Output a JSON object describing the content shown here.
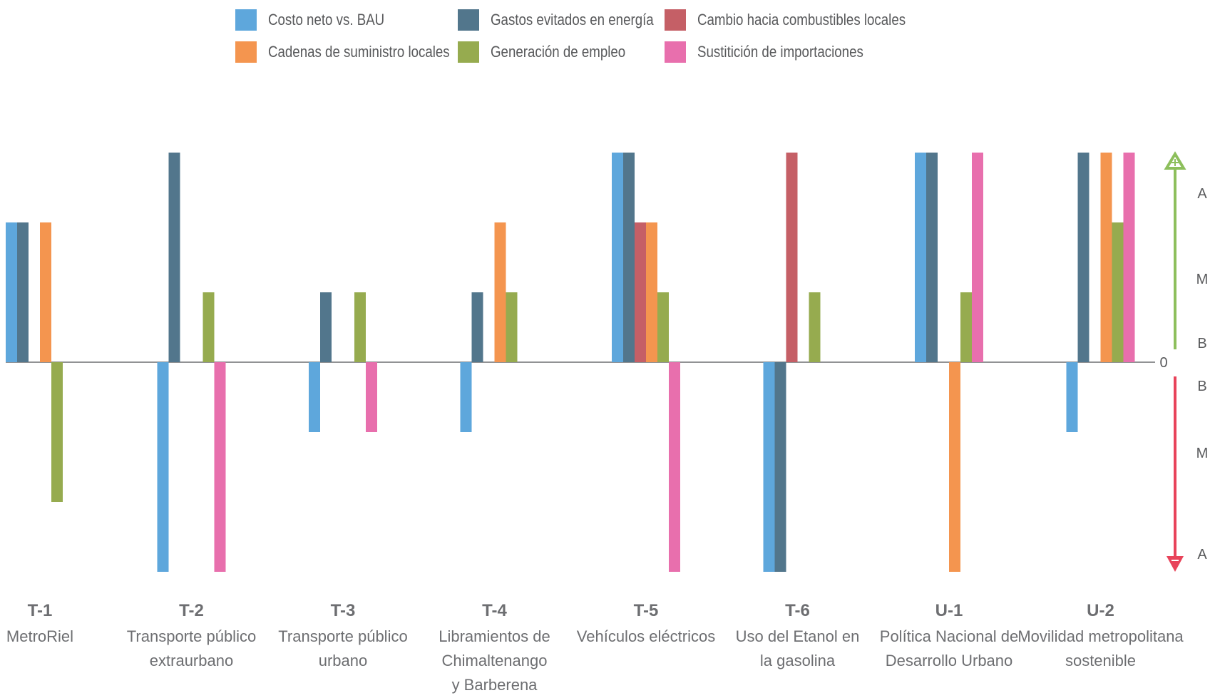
{
  "chart_data": {
    "type": "bar",
    "title": "",
    "legend_position": "top",
    "grid": false,
    "level_scale": {
      "positive_labels": [
        "B",
        "M",
        "A"
      ],
      "negative_labels": [
        "B",
        "M",
        "A"
      ],
      "zero_label": "0",
      "ylim": [
        -3,
        3
      ],
      "positive_color": "#8dbf5c",
      "negative_color": "#e8435a"
    },
    "categories": [
      {
        "code": "T-1",
        "name": [
          "MetroRiel"
        ]
      },
      {
        "code": "T-2",
        "name": [
          "Transporte público",
          "extraurbano"
        ]
      },
      {
        "code": "T-3",
        "name": [
          "Transporte público",
          "urbano"
        ]
      },
      {
        "code": "T-4",
        "name": [
          "Libramientos de",
          "Chimaltenango",
          "y Barberena"
        ]
      },
      {
        "code": "T-5",
        "name": [
          "Vehículos eléctricos"
        ]
      },
      {
        "code": "T-6",
        "name": [
          "Uso del Etanol en",
          "la gasolina"
        ]
      },
      {
        "code": "U-1",
        "name": [
          "Política Nacional de",
          "Desarrollo Urbano"
        ]
      },
      {
        "code": "U-2",
        "name": [
          "Movilidad metropolitana",
          "sostenible"
        ]
      }
    ],
    "series": [
      {
        "name": "Costo neto vs. BAU",
        "color": "#5ea7dc",
        "values": [
          2,
          -3,
          -1,
          -1,
          3,
          -3,
          3,
          -1
        ]
      },
      {
        "name": "Gastos evitados en energía",
        "color": "#52768c",
        "values": [
          2,
          3,
          1,
          1,
          3,
          -3,
          3,
          3
        ]
      },
      {
        "name": "Cambio hacia combustibles locales",
        "color": "#c55f66",
        "values": [
          0,
          0,
          0,
          0,
          2,
          3,
          0,
          0
        ]
      },
      {
        "name": "Cadenas de suministro locales",
        "color": "#f4954f",
        "values": [
          2,
          0,
          0,
          2,
          2,
          0,
          -3,
          3
        ]
      },
      {
        "name": "Generación de empleo",
        "color": "#96ab4f",
        "values": [
          -2,
          1,
          1,
          1,
          1,
          1,
          1,
          2
        ]
      },
      {
        "name": "Sustitición de importaciones",
        "color": "#e86fad",
        "values": [
          0,
          -3,
          -1,
          0,
          -3,
          0,
          3,
          3
        ]
      }
    ]
  }
}
